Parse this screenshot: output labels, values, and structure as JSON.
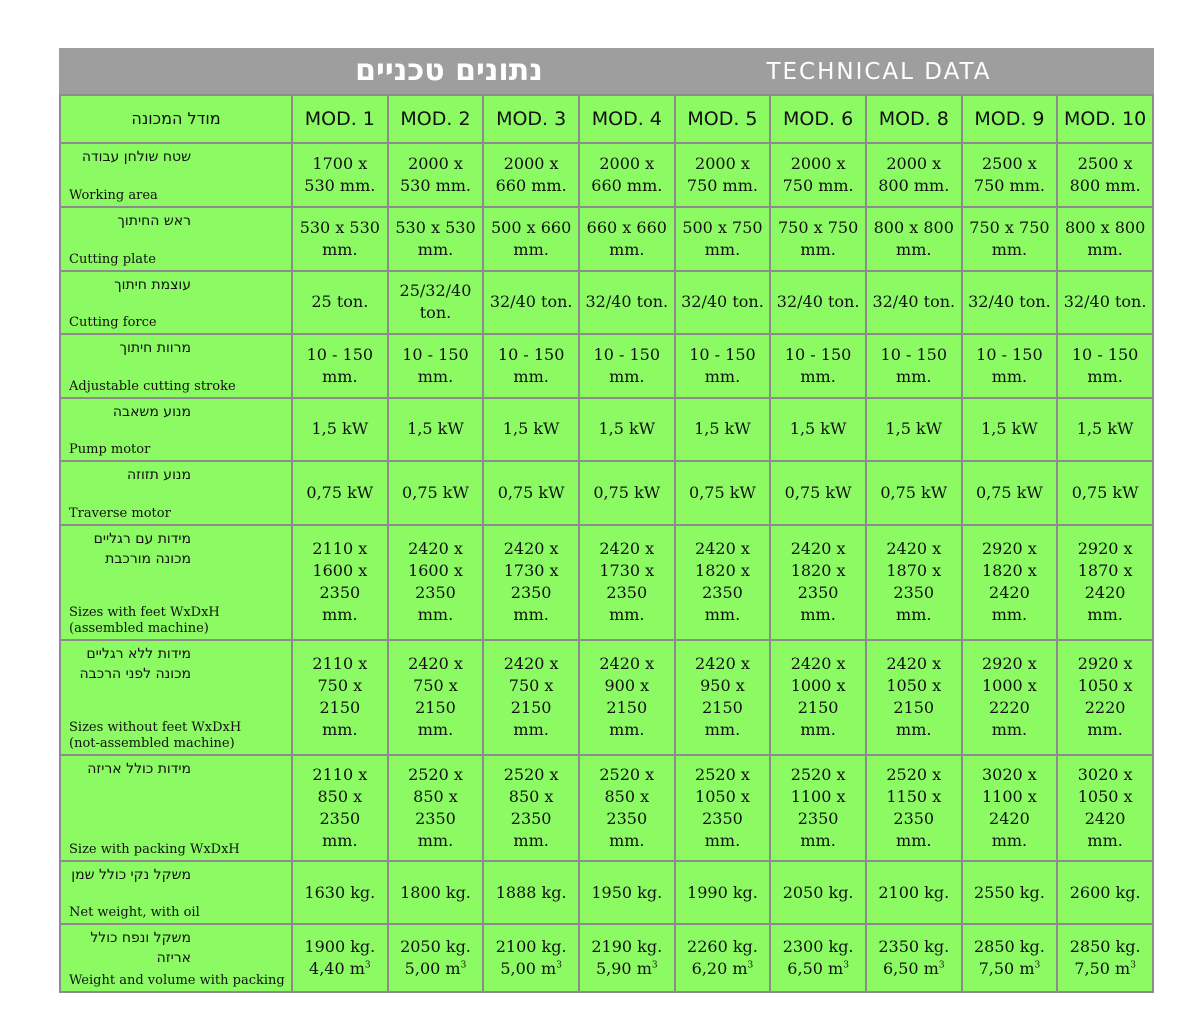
{
  "title": {
    "hebrew": "נתונים טכניים",
    "english": "TECHNICAL DATA"
  },
  "header": {
    "label": "מודל המכונה",
    "models": [
      "MOD. 1",
      "MOD. 2",
      "MOD. 3",
      "MOD. 4",
      "MOD. 5",
      "MOD. 6",
      "MOD. 8",
      "MOD. 9",
      "MOD. 10"
    ]
  },
  "rows": [
    {
      "he": "שטח שולחן עבודה",
      "en": "Working area",
      "values": [
        "1700 x\n530 mm.",
        "2000 x\n530 mm.",
        "2000 x\n660 mm.",
        "2000 x\n660 mm.",
        "2000 x\n750 mm.",
        "2000 x\n750 mm.",
        "2000 x\n800 mm.",
        "2500 x\n750 mm.",
        "2500 x\n800 mm."
      ]
    },
    {
      "he": "ראש החיתוך",
      "en": "Cutting plate",
      "values": [
        "530 x 530\nmm.",
        "530 x 530\nmm.",
        "500 x 660\nmm.",
        "660 x 660\nmm.",
        "500 x 750\nmm.",
        "750 x 750\nmm.",
        "800 x 800\nmm.",
        "750 x 750\nmm.",
        "800 x 800\nmm."
      ]
    },
    {
      "he": "עוצמת חיתוך",
      "en": "Cutting force",
      "values": [
        "25 ton.",
        "25/32/40\nton.",
        "32/40 ton.",
        "32/40 ton.",
        "32/40 ton.",
        "32/40 ton.",
        "32/40 ton.",
        "32/40 ton.",
        "32/40 ton."
      ]
    },
    {
      "he": "מרוות חיתוך",
      "en": "Adjustable cutting stroke",
      "values": [
        "10 - 150\nmm.",
        "10 - 150\nmm.",
        "10 - 150\nmm.",
        "10 - 150\nmm.",
        "10 - 150\nmm.",
        "10 - 150\nmm.",
        "10 - 150\nmm.",
        "10 - 150\nmm.",
        "10 - 150\nmm."
      ]
    },
    {
      "he": "מנוע משאבה",
      "en": "Pump motor",
      "values": [
        "1,5 kW",
        "1,5 kW",
        "1,5 kW",
        "1,5 kW",
        "1,5 kW",
        "1,5 kW",
        "1,5 kW",
        "1,5 kW",
        "1,5 kW"
      ]
    },
    {
      "he": "מנוע תזוזה",
      "en": "Traverse motor",
      "values": [
        "0,75 kW",
        "0,75 kW",
        "0,75 kW",
        "0,75 kW",
        "0,75 kW",
        "0,75 kW",
        "0,75 kW",
        "0,75 kW",
        "0,75 kW"
      ]
    },
    {
      "he": "מידות עם רגליים\nמכונה מורכבת",
      "en": "Sizes with feet WxDxH\n(assembled machine)",
      "values": [
        "2110 x\n1600 x\n2350\nmm.",
        "2420 x\n1600 x\n2350\nmm.",
        "2420 x\n1730 x\n2350\nmm.",
        "2420 x\n1730 x\n2350\nmm.",
        "2420 x\n1820 x\n2350\nmm.",
        "2420 x\n1820 x\n2350\nmm.",
        "2420 x\n1870 x\n2350\nmm.",
        "2920 x\n1820 x\n2420\nmm.",
        "2920 x\n1870 x\n2420\nmm."
      ]
    },
    {
      "he": "מידות ללא רגליים\nמכונה לפני הרכבה",
      "en": "Sizes without feet WxDxH\n(not-assembled machine)",
      "values": [
        "2110 x\n750 x\n2150\nmm.",
        "2420 x\n750 x\n2150\nmm.",
        "2420 x\n750 x\n2150\nmm.",
        "2420 x\n900 x\n2150\nmm.",
        "2420 x\n950 x\n2150\nmm.",
        "2420 x\n1000 x\n2150\nmm.",
        "2420 x\n1050 x\n2150\nmm.",
        "2920 x\n1000 x\n2220\nmm.",
        "2920 x\n1050 x\n2220\nmm."
      ]
    },
    {
      "he": "מידות כולל אריזה",
      "en": "Size with packing WxDxH",
      "values": [
        "2110 x\n850 x\n2350\nmm.",
        "2520 x\n850 x\n2350\nmm.",
        "2520 x\n850 x\n2350\nmm.",
        "2520 x\n850 x\n2350\nmm.",
        "2520 x\n1050 x\n2350\nmm.",
        "2520 x\n1100 x\n2350\nmm.",
        "2520 x\n1150 x\n2350\nmm.",
        "3020 x\n1100 x\n2420\nmm.",
        "3020 x\n1050 x\n2420\nmm."
      ]
    },
    {
      "he": "משקל נקי כולל שמן",
      "en": "Net weight, with oil",
      "values": [
        "1630 kg.",
        "1800 kg.",
        "1888 kg.",
        "1950 kg.",
        "1990 kg.",
        "2050 kg.",
        "2100 kg.",
        "2550 kg.",
        "2600 kg."
      ]
    }
  ],
  "last_row": {
    "he": "משקל ונפח כולל אריזה",
    "en": "Weight and volume with packing",
    "unit_sup": "3",
    "values": [
      {
        "weight": "1900 kg.",
        "volume": "4,40 m"
      },
      {
        "weight": "2050 kg.",
        "volume": "5,00 m"
      },
      {
        "weight": "2100 kg.",
        "volume": "5,00 m"
      },
      {
        "weight": "2190 kg.",
        "volume": "5,90 m"
      },
      {
        "weight": "2260 kg.",
        "volume": "6,20 m"
      },
      {
        "weight": "2300 kg.",
        "volume": "6,50 m"
      },
      {
        "weight": "2350 kg.",
        "volume": "6,50 m"
      },
      {
        "weight": "2850 kg.",
        "volume": "7,50 m"
      },
      {
        "weight": "2850 kg.",
        "volume": "7,50 m"
      }
    ]
  },
  "colors": {
    "cell": "#8bfa63",
    "grid": "#8c8c8c",
    "title_bar": "#9e9e9e",
    "title_text": "#ffffff"
  }
}
